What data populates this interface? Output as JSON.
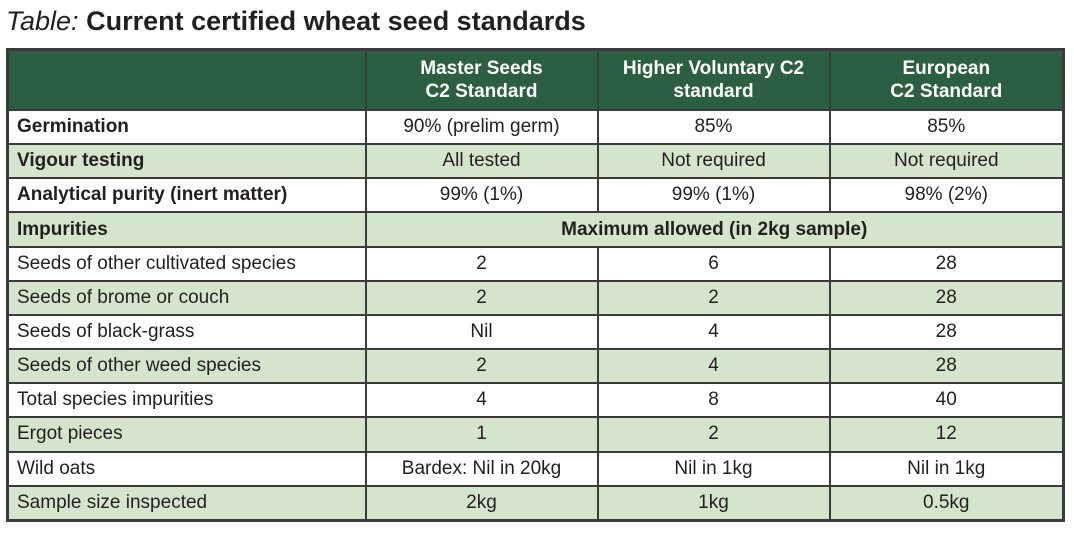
{
  "title": {
    "prefix": "Table:",
    "text": "Current certified wheat seed standards"
  },
  "columns": [
    {
      "line1": "",
      "line2": ""
    },
    {
      "line1": "Master Seeds",
      "line2": "C2 Standard"
    },
    {
      "line1": "Higher Voluntary C2",
      "line2": "standard"
    },
    {
      "line1": "European",
      "line2": "C2 Standard"
    }
  ],
  "rows": [
    {
      "label": "Germination",
      "bold": true,
      "shade": false,
      "values": [
        "90% (prelim germ)",
        "85%",
        "85%"
      ]
    },
    {
      "label": "Vigour testing",
      "bold": true,
      "shade": true,
      "values": [
        "All tested",
        "Not required",
        "Not required"
      ]
    },
    {
      "label": "Analytical purity (inert matter)",
      "bold": true,
      "shade": false,
      "values": [
        "99% (1%)",
        "99% (1%)",
        "98% (2%)"
      ]
    },
    {
      "label": "Impurities",
      "bold": true,
      "shade": true,
      "span": "Maximum allowed (in 2kg sample)"
    },
    {
      "label": "Seeds of other cultivated species",
      "bold": false,
      "shade": false,
      "values": [
        "2",
        "6",
        "28"
      ]
    },
    {
      "label": "Seeds of brome or couch",
      "bold": false,
      "shade": true,
      "values": [
        "2",
        "2",
        "28"
      ]
    },
    {
      "label": "Seeds of black-grass",
      "bold": false,
      "shade": false,
      "values": [
        "Nil",
        "4",
        "28"
      ]
    },
    {
      "label": "Seeds of other weed species",
      "bold": false,
      "shade": true,
      "values": [
        "2",
        "4",
        "28"
      ]
    },
    {
      "label": "Total species impurities",
      "bold": false,
      "shade": false,
      "values": [
        "4",
        "8",
        "40"
      ]
    },
    {
      "label": "Ergot pieces",
      "bold": false,
      "shade": true,
      "values": [
        "1",
        "2",
        "12"
      ]
    },
    {
      "label": "Wild oats",
      "bold": false,
      "shade": false,
      "values": [
        "Bardex: Nil in 20kg",
        "Nil in 1kg",
        "Nil in 1kg"
      ]
    },
    {
      "label": "Sample size inspected",
      "bold": false,
      "shade": true,
      "values": [
        "2kg",
        "1kg",
        "0.5kg"
      ]
    }
  ]
}
